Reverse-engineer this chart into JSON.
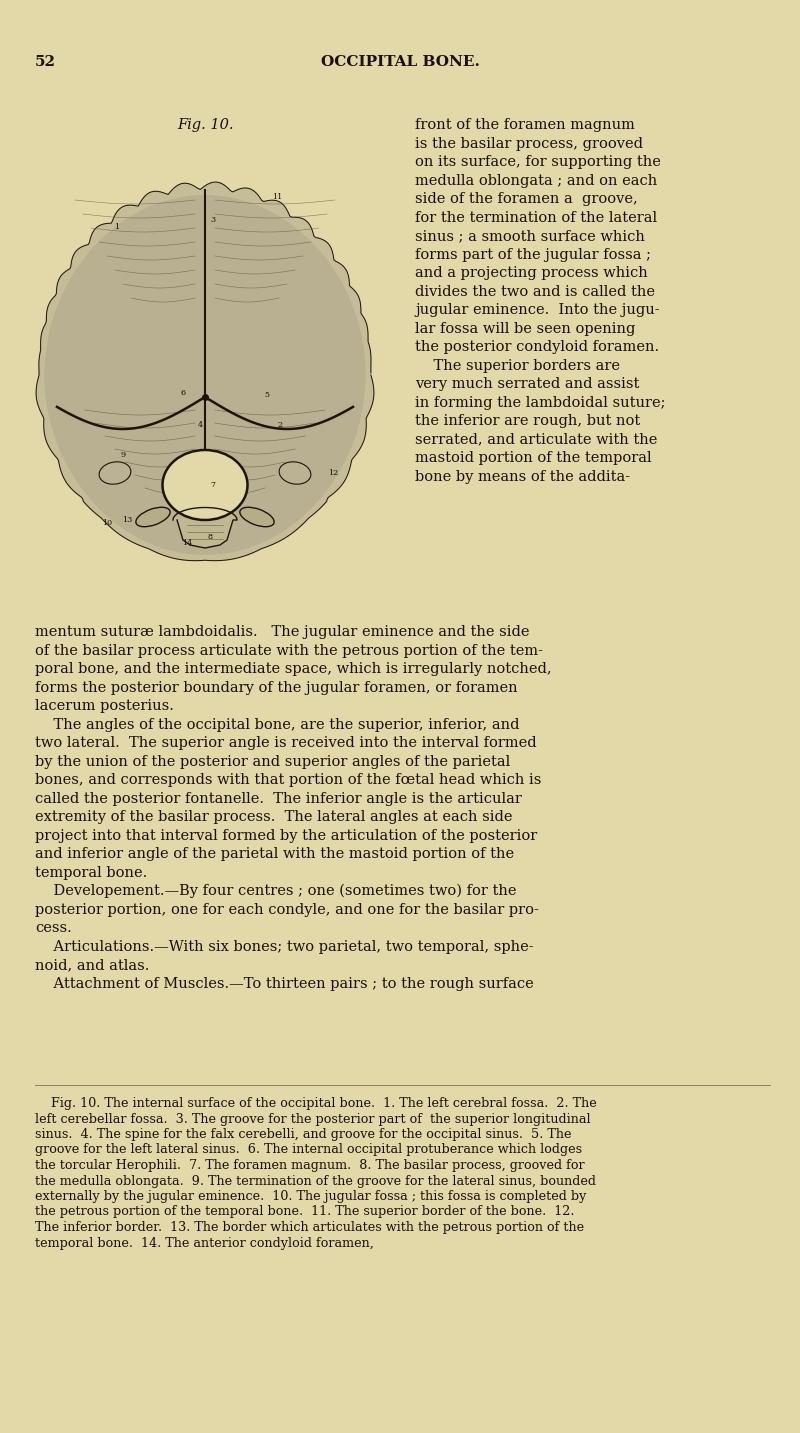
{
  "bg_color": "#e2d8a8",
  "text_color": "#1a1008",
  "page_number": "52",
  "header_title": "OCCIPITAL BONE.",
  "fig_label": "Fig. 10.",
  "right_col_lines": [
    "front of the foramen magnum",
    "is the basilar process, grooved",
    "on its surface, for supporting the",
    "medulla oblongata ; and on each",
    "side of the foramen a  groove,",
    "for the termination of the lateral",
    "sinus ; a smooth surface which",
    "forms part of the jugular fossa ;",
    "and a projecting process which",
    "divides the two and is called the",
    "jugular eminence.  Into the jugu-",
    "lar fossa will be seen opening",
    "the posterior condyloid foramen.",
    "    The superior borders are",
    "very much serrated and assist",
    "in forming the lambdoidal suture;",
    "the inferior are rough, but not",
    "serrated, and articulate with the",
    "mastoid portion of the temporal",
    "bone by means of the addita-"
  ],
  "body_lines": [
    "mentum suturæ lambdoidalis.   The jugular eminence and the side",
    "of the basilar process articulate with the petrous portion of the tem-",
    "poral bone, and the intermediate space, which is irregularly notched,",
    "forms the posterior boundary of the jugular foramen, or foramen",
    "lacerum posterius.",
    "    The angles of the occipital bone, are the superior, inferior, and",
    "two lateral.  The superior angle is received into the interval formed",
    "by the union of the posterior and superior angles of the parietal",
    "bones, and corresponds with that portion of the fœtal head which is",
    "called the posterior fontanelle.  The inferior angle is the articular",
    "extremity of the basilar process.  The lateral angles at each side",
    "project into that interval formed by the articulation of the posterior",
    "and inferior angle of the parietal with the mastoid portion of the",
    "temporal bone.",
    "    Developement.—By four centres ; one (sometimes two) for the",
    "posterior portion, one for each condyle, and one for the basilar pro-",
    "cess.",
    "    Articulations.—With six bones; two parietal, two temporal, sphe-",
    "noid, and atlas.",
    "    Attachment of Muscles.—To thirteen pairs ; to the rough surface"
  ],
  "caption_lines": [
    "    Fig. 10. The internal surface of the occipital bone.  1. The left cerebral fossa.  2. The",
    "left cerebellar fossa.  3. The groove for the posterior part of  the superior longitudinal",
    "sinus.  4. The spine for the falx cerebelli, and groove for the occipital sinus.  5. The",
    "groove for the left lateral sinus.  6. The internal occipital protuberance which lodges",
    "the torcular Herophili.  7. The foramen magnum.  8. The basilar process, grooved for",
    "the medulla oblongata.  9. The termination of the groove for the lateral sinus, bounded",
    "externally by the jugular eminence.  10. The jugular fossa ; this fossa is completed by",
    "the petrous portion of the temporal bone.  11. The superior border of the bone.  12.",
    "The inferior border.  13. The border which articulates with the petrous portion of the",
    "temporal bone.  14. The anterior condyloid foramen,"
  ],
  "font_size_header": 11,
  "font_size_body": 10.5,
  "font_size_caption": 9.2,
  "font_size_page_num": 11,
  "figsize": [
    8.0,
    14.33
  ],
  "fig_dpi": 100
}
